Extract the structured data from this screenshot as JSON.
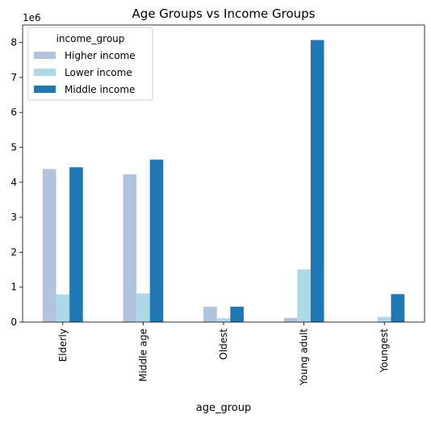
{
  "chart_data": {
    "type": "bar",
    "title": "Age Groups vs Income Groups",
    "xlabel": "age_group",
    "ylabel": "",
    "offset_label": "1e6",
    "ylim": [
      0,
      8500000
    ],
    "yticks": [
      0,
      1000000,
      2000000,
      3000000,
      4000000,
      5000000,
      6000000,
      7000000,
      8000000
    ],
    "ytick_labels": [
      "0",
      "1",
      "2",
      "3",
      "4",
      "5",
      "6",
      "7",
      "8"
    ],
    "categories": [
      "Elderly",
      "Middle age",
      "Oldest",
      "Young adult",
      "Youngest"
    ],
    "grid": false,
    "legend": {
      "title": "income_group",
      "position": "top-left"
    },
    "series": [
      {
        "name": "Higher income",
        "color": "#b0c4de",
        "values": [
          4380000,
          4230000,
          440000,
          120000,
          0
        ]
      },
      {
        "name": "Lower income",
        "color": "#add8e6",
        "values": [
          790000,
          820000,
          110000,
          1510000,
          150000
        ]
      },
      {
        "name": "Middle income",
        "color": "#1f77b4",
        "values": [
          4430000,
          4650000,
          440000,
          8070000,
          800000
        ]
      }
    ]
  }
}
